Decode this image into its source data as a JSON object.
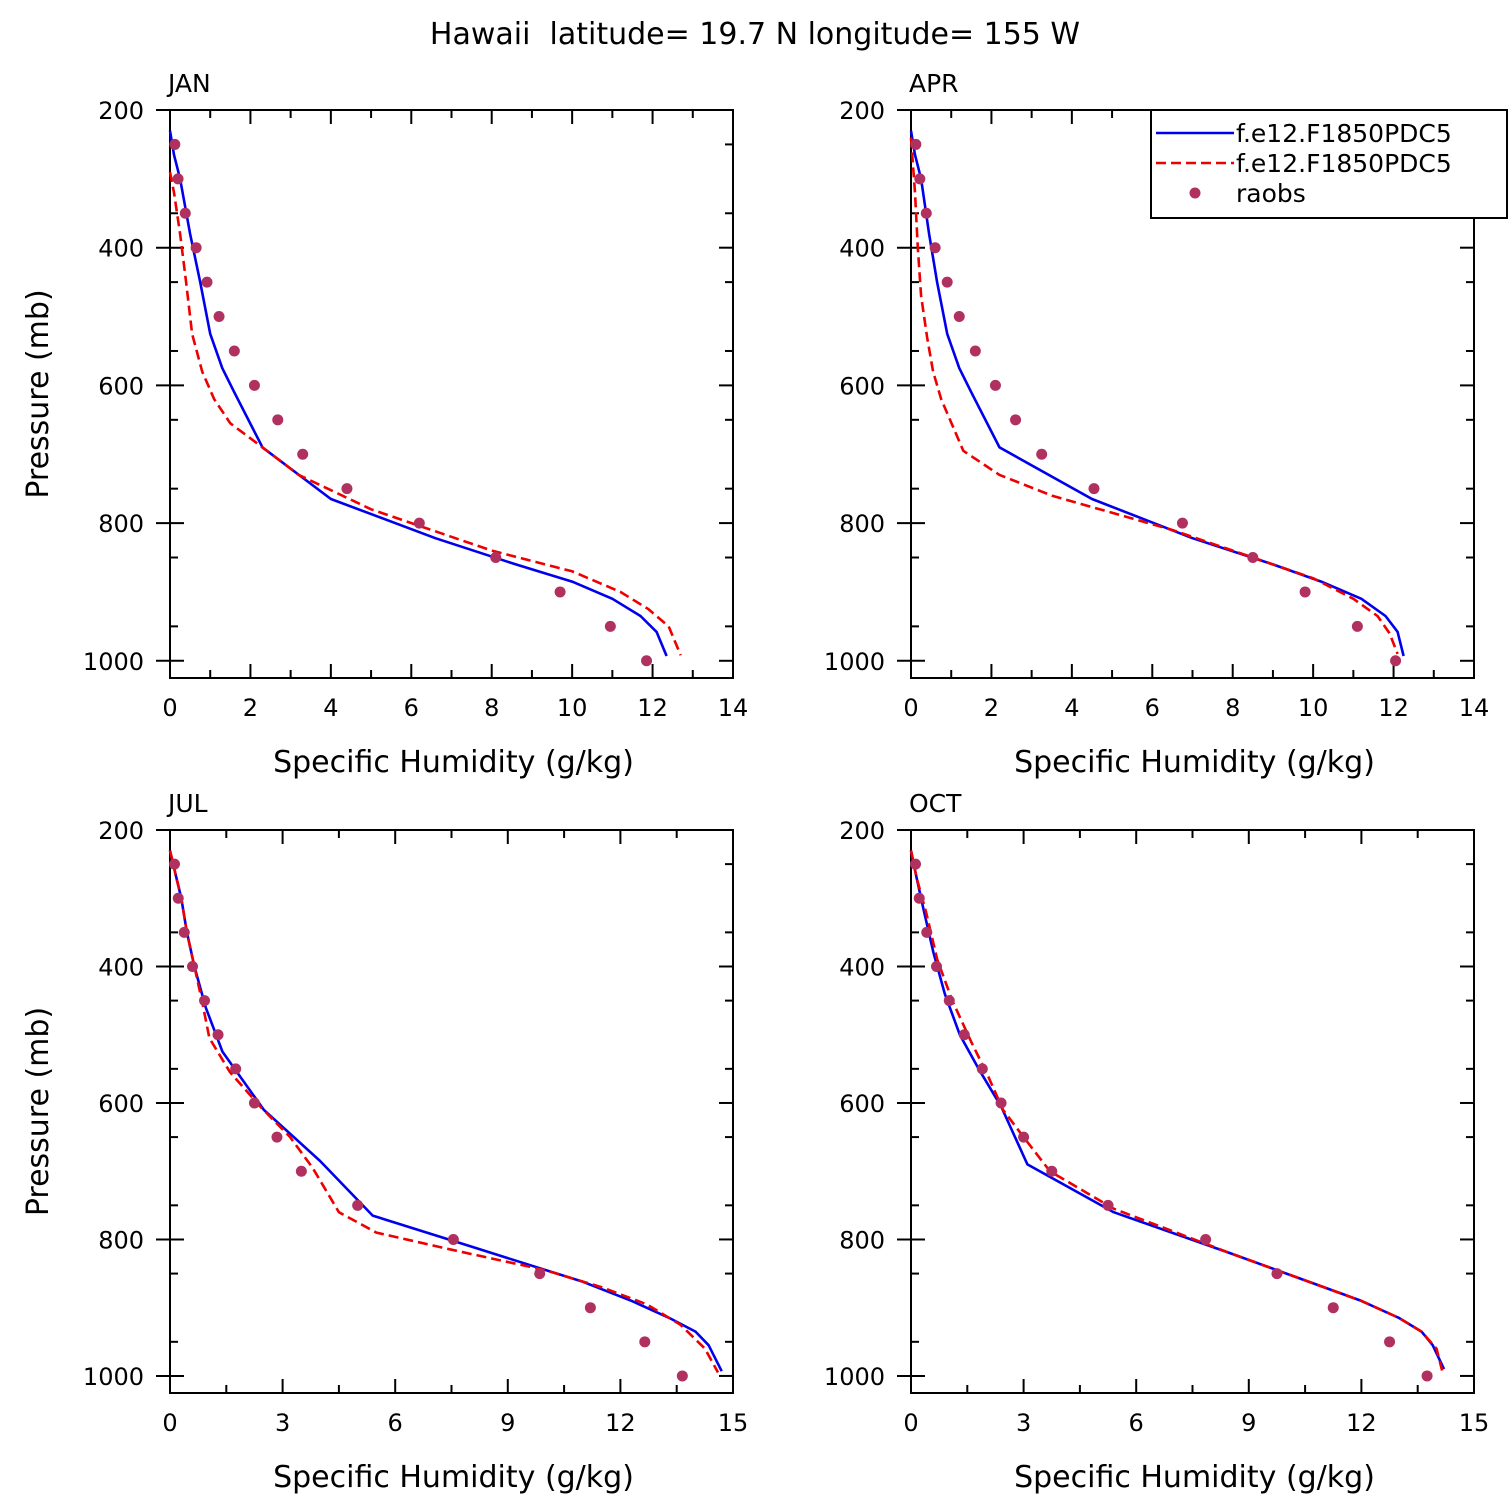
{
  "figure": {
    "title": "Hawaii  latitude= 19.7 N longitude= 155 W"
  },
  "legend": {
    "entries": [
      {
        "label": "f.e12.F1850PDC5",
        "color": "#0000ee",
        "style": "solid"
      },
      {
        "label": "f.e12.F1850PDC5",
        "color": "#ee0000",
        "style": "dashed"
      },
      {
        "label": "raobs",
        "color": "#b03060",
        "style": "dot"
      }
    ]
  },
  "chart_data": [
    {
      "type": "line",
      "title": "JAN",
      "xlabel": "Specific Humidity (g/kg)",
      "ylabel": "Pressure (mb)",
      "xlim": [
        0,
        14
      ],
      "ylim": [
        1025,
        200
      ],
      "xticks": [
        0,
        2,
        4,
        6,
        8,
        10,
        12,
        14
      ],
      "yticks": [
        200,
        400,
        600,
        800,
        1000
      ],
      "series": [
        {
          "name": "f.e12.F1850PDC5",
          "color": "#0000ee",
          "style": "solid",
          "x": [
            0.0,
            0.1,
            0.25,
            0.5,
            0.75,
            1.0,
            1.3,
            1.6,
            2.3,
            4.0,
            6.6,
            8.6,
            10.0,
            11.0,
            11.7,
            12.1,
            12.35
          ],
          "y": [
            230,
            265,
            300,
            380,
            450,
            525,
            575,
            610,
            690,
            765,
            822,
            860,
            885,
            910,
            935,
            958,
            993
          ]
        },
        {
          "name": "f.e12.F1850PDC5",
          "color": "#ee0000",
          "style": "dashed",
          "x": [
            0.0,
            0.1,
            0.25,
            0.4,
            0.55,
            0.8,
            1.1,
            1.5,
            2.3,
            3.2,
            5.0,
            8.0,
            10.0,
            11.2,
            11.9,
            12.4,
            12.7
          ],
          "y": [
            290,
            320,
            380,
            450,
            525,
            580,
            620,
            655,
            690,
            730,
            780,
            840,
            870,
            900,
            925,
            950,
            992
          ]
        },
        {
          "name": "raobs",
          "color": "#b03060",
          "style": "dot",
          "x": [
            0.12,
            0.2,
            0.38,
            0.65,
            0.92,
            1.22,
            1.6,
            2.1,
            2.68,
            3.3,
            4.4,
            6.2,
            8.1,
            9.7,
            10.95,
            11.85
          ],
          "y": [
            250,
            300,
            350,
            400,
            450,
            500,
            550,
            600,
            650,
            700,
            750,
            800,
            850,
            900,
            950,
            1000
          ]
        }
      ]
    },
    {
      "type": "line",
      "title": "APR",
      "xlabel": "Specific Humidity (g/kg)",
      "ylabel": "",
      "xlim": [
        0,
        14
      ],
      "ylim": [
        1025,
        200
      ],
      "xticks": [
        0,
        2,
        4,
        6,
        8,
        10,
        12,
        14
      ],
      "yticks": [
        200,
        400,
        600,
        800,
        1000
      ],
      "series": [
        {
          "name": "f.e12.F1850PDC5",
          "color": "#0000ee",
          "style": "solid",
          "x": [
            0.0,
            0.1,
            0.25,
            0.45,
            0.65,
            0.9,
            1.2,
            1.5,
            2.2,
            4.5,
            7.0,
            9.0,
            10.2,
            11.2,
            11.8,
            12.1,
            12.25
          ],
          "y": [
            230,
            265,
            300,
            380,
            450,
            525,
            575,
            610,
            690,
            765,
            822,
            860,
            885,
            910,
            935,
            958,
            993
          ]
        },
        {
          "name": "f.e12.F1850PDC5",
          "color": "#ee0000",
          "style": "dashed",
          "x": [
            0.0,
            0.05,
            0.1,
            0.17,
            0.25,
            0.4,
            0.55,
            0.75,
            1.3,
            2.2,
            3.5,
            6.5,
            8.5,
            10.0,
            11.0,
            11.6,
            11.9,
            12.1
          ],
          "y": [
            240,
            280,
            320,
            400,
            470,
            530,
            580,
            620,
            695,
            730,
            760,
            810,
            850,
            880,
            910,
            935,
            960,
            990
          ]
        },
        {
          "name": "raobs",
          "color": "#b03060",
          "style": "dot",
          "x": [
            0.12,
            0.22,
            0.38,
            0.6,
            0.9,
            1.2,
            1.6,
            2.1,
            2.6,
            3.25,
            4.55,
            6.75,
            8.5,
            9.8,
            11.1,
            12.05
          ],
          "y": [
            250,
            300,
            350,
            400,
            450,
            500,
            550,
            600,
            650,
            700,
            750,
            800,
            850,
            900,
            950,
            1000
          ]
        }
      ]
    },
    {
      "type": "line",
      "title": "JUL",
      "xlabel": "Specific Humidity (g/kg)",
      "ylabel": "Pressure (mb)",
      "xlim": [
        0,
        15
      ],
      "ylim": [
        1025,
        200
      ],
      "xticks": [
        0,
        3,
        6,
        9,
        12,
        15
      ],
      "yticks": [
        200,
        400,
        600,
        800,
        1000
      ],
      "series": [
        {
          "name": "f.e12.F1850PDC5",
          "color": "#0000ee",
          "style": "solid",
          "x": [
            0.0,
            0.15,
            0.3,
            0.45,
            0.65,
            0.95,
            1.4,
            2.5,
            4.0,
            5.4,
            8.0,
            11.0,
            12.3,
            13.3,
            14.0,
            14.35,
            14.7
          ],
          "y": [
            230,
            265,
            300,
            350,
            400,
            460,
            525,
            610,
            685,
            765,
            810,
            862,
            890,
            915,
            935,
            955,
            993
          ]
        },
        {
          "name": "f.e12.F1850PDC5",
          "color": "#ee0000",
          "style": "dashed",
          "x": [
            0.0,
            0.15,
            0.3,
            0.45,
            0.65,
            0.85,
            1.05,
            1.6,
            2.4,
            3.2,
            3.8,
            4.5,
            5.5,
            7.5,
            10.0,
            11.5,
            12.7,
            13.6,
            14.25,
            14.6
          ],
          "y": [
            230,
            265,
            300,
            350,
            400,
            450,
            505,
            555,
            605,
            650,
            695,
            760,
            790,
            815,
            845,
            870,
            895,
            925,
            960,
            995
          ]
        },
        {
          "name": "raobs",
          "color": "#b03060",
          "style": "dot",
          "x": [
            0.12,
            0.22,
            0.38,
            0.6,
            0.92,
            1.28,
            1.75,
            2.25,
            2.85,
            3.5,
            5.0,
            7.55,
            9.85,
            11.2,
            12.65,
            13.65
          ],
          "y": [
            250,
            300,
            350,
            400,
            450,
            500,
            550,
            600,
            650,
            700,
            750,
            800,
            850,
            900,
            950,
            1000
          ]
        }
      ]
    },
    {
      "type": "line",
      "title": "OCT",
      "xlabel": "Specific Humidity (g/kg)",
      "ylabel": "",
      "xlim": [
        0,
        15
      ],
      "ylim": [
        1025,
        200
      ],
      "xticks": [
        0,
        3,
        6,
        9,
        12,
        15
      ],
      "yticks": [
        200,
        400,
        600,
        800,
        1000
      ],
      "series": [
        {
          "name": "f.e12.F1850PDC5",
          "color": "#0000ee",
          "style": "solid",
          "x": [
            0.0,
            0.15,
            0.35,
            0.6,
            0.9,
            1.3,
            1.8,
            2.4,
            3.1,
            5.4,
            8.5,
            10.5,
            12.0,
            13.0,
            13.6,
            13.9,
            14.2
          ],
          "y": [
            230,
            270,
            320,
            380,
            440,
            500,
            550,
            605,
            690,
            760,
            820,
            860,
            890,
            915,
            935,
            955,
            990
          ]
        },
        {
          "name": "f.e12.F1850PDC5",
          "color": "#ee0000",
          "style": "dashed",
          "x": [
            0.0,
            0.15,
            0.4,
            0.7,
            1.1,
            1.6,
            2.05,
            2.45,
            3.0,
            3.7,
            5.4,
            8.5,
            10.5,
            12.0,
            13.0,
            13.6,
            14.0,
            14.15
          ],
          "y": [
            230,
            270,
            320,
            390,
            450,
            510,
            560,
            610,
            650,
            700,
            755,
            820,
            860,
            890,
            915,
            935,
            960,
            992
          ]
        },
        {
          "name": "raobs",
          "color": "#b03060",
          "style": "dot",
          "x": [
            0.12,
            0.22,
            0.42,
            0.68,
            1.02,
            1.42,
            1.9,
            2.4,
            3.0,
            3.75,
            5.25,
            7.85,
            9.75,
            11.25,
            12.75,
            13.75
          ],
          "y": [
            250,
            300,
            350,
            400,
            450,
            500,
            550,
            600,
            650,
            700,
            750,
            800,
            850,
            900,
            950,
            1000
          ]
        }
      ]
    }
  ]
}
